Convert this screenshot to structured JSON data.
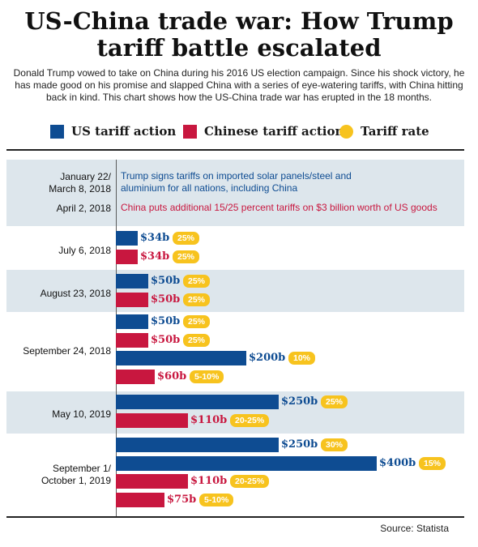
{
  "header": {
    "title": "US-China trade war: How Trump tariff battle escalated",
    "intro": "Donald Trump vowed to take on China during his 2016 US election campaign. Since his shock victory, he has made good on his promise and slapped China with a series of eye-watering tariffs, with China hitting back in kind. This chart shows how the US-China trade war has erupted in the 18 months."
  },
  "legend": {
    "us": "US tariff action",
    "china": "Chinese tariff action",
    "rate": "Tariff rate"
  },
  "colors": {
    "us": "#0e4c92",
    "china": "#c8173f",
    "rate": "#f7c31e",
    "band": "#dde6ec",
    "rule": "#222222"
  },
  "events": {
    "date_1": "January 22/\nMarch 8, 2018",
    "text_1": "Trump signs tariffs on imported solar panels/steel and aluminium for all nations, including China",
    "date_2": "April 2, 2018",
    "text_2": "China puts additional 15/25 percent tariffs on $3 billion worth of US goods"
  },
  "chart_data": {
    "type": "bar",
    "unit": "US$ billion of goods",
    "groups": [
      {
        "date": "July 6, 2018",
        "bars": [
          {
            "side": "us",
            "value": 34,
            "label": "$34b",
            "rate": "25%"
          },
          {
            "side": "china",
            "value": 34,
            "label": "$34b",
            "rate": "25%"
          }
        ]
      },
      {
        "date": "August 23, 2018",
        "bars": [
          {
            "side": "us",
            "value": 50,
            "label": "$50b",
            "rate": "25%"
          },
          {
            "side": "china",
            "value": 50,
            "label": "$50b",
            "rate": "25%"
          }
        ]
      },
      {
        "date": "September 24, 2018",
        "bars": [
          {
            "side": "us",
            "value": 50,
            "label": "$50b",
            "rate": "25%"
          },
          {
            "side": "china",
            "value": 50,
            "label": "$50b",
            "rate": "25%"
          },
          {
            "side": "us",
            "value": 200,
            "label": "$200b",
            "rate": "10%"
          },
          {
            "side": "china",
            "value": 60,
            "label": "$60b",
            "rate": "5-10%"
          }
        ]
      },
      {
        "date": "May 10, 2019",
        "bars": [
          {
            "side": "us",
            "value": 250,
            "label": "$250b",
            "rate": "25%"
          },
          {
            "side": "china",
            "value": 110,
            "label": "$110b",
            "rate": "20-25%"
          }
        ]
      },
      {
        "date": "September 1/\nOctober 1, 2019",
        "bars": [
          {
            "side": "us",
            "value": 250,
            "label": "$250b",
            "rate": "30%"
          },
          {
            "side": "us",
            "value": 400,
            "label": "$400b",
            "rate": "15%"
          },
          {
            "side": "china",
            "value": 110,
            "label": "$110b",
            "rate": "20-25%"
          },
          {
            "side": "china",
            "value": 75,
            "label": "$75b",
            "rate": "5-10%"
          }
        ]
      }
    ]
  },
  "footer": {
    "source": "Source: Statista"
  }
}
